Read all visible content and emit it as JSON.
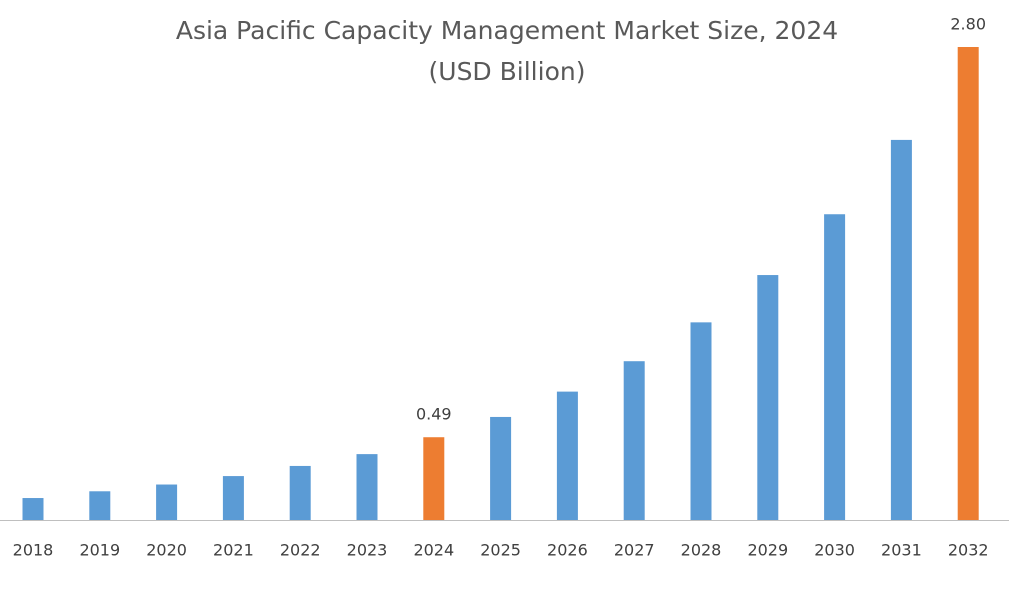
{
  "chart_data": {
    "type": "bar",
    "title": "Asia Pacific Capacity Management Market Size, 2024",
    "subtitle": "(USD Billion)",
    "categories": [
      "2018",
      "2019",
      "2020",
      "2021",
      "2022",
      "2023",
      "2024",
      "2025",
      "2026",
      "2027",
      "2028",
      "2029",
      "2030",
      "2031",
      "2032"
    ],
    "values": [
      0.13,
      0.17,
      0.21,
      0.26,
      0.32,
      0.39,
      0.49,
      0.61,
      0.76,
      0.94,
      1.17,
      1.45,
      1.81,
      2.25,
      2.8
    ],
    "value_labels": [
      null,
      null,
      null,
      null,
      null,
      null,
      "0.49",
      null,
      null,
      null,
      null,
      null,
      null,
      null,
      "2.80"
    ],
    "colors": [
      "#5b9bd5",
      "#5b9bd5",
      "#5b9bd5",
      "#5b9bd5",
      "#5b9bd5",
      "#5b9bd5",
      "#ed7d31",
      "#5b9bd5",
      "#5b9bd5",
      "#5b9bd5",
      "#5b9bd5",
      "#5b9bd5",
      "#5b9bd5",
      "#5b9bd5",
      "#ed7d31"
    ],
    "ylim": [
      0,
      2.8
    ]
  }
}
